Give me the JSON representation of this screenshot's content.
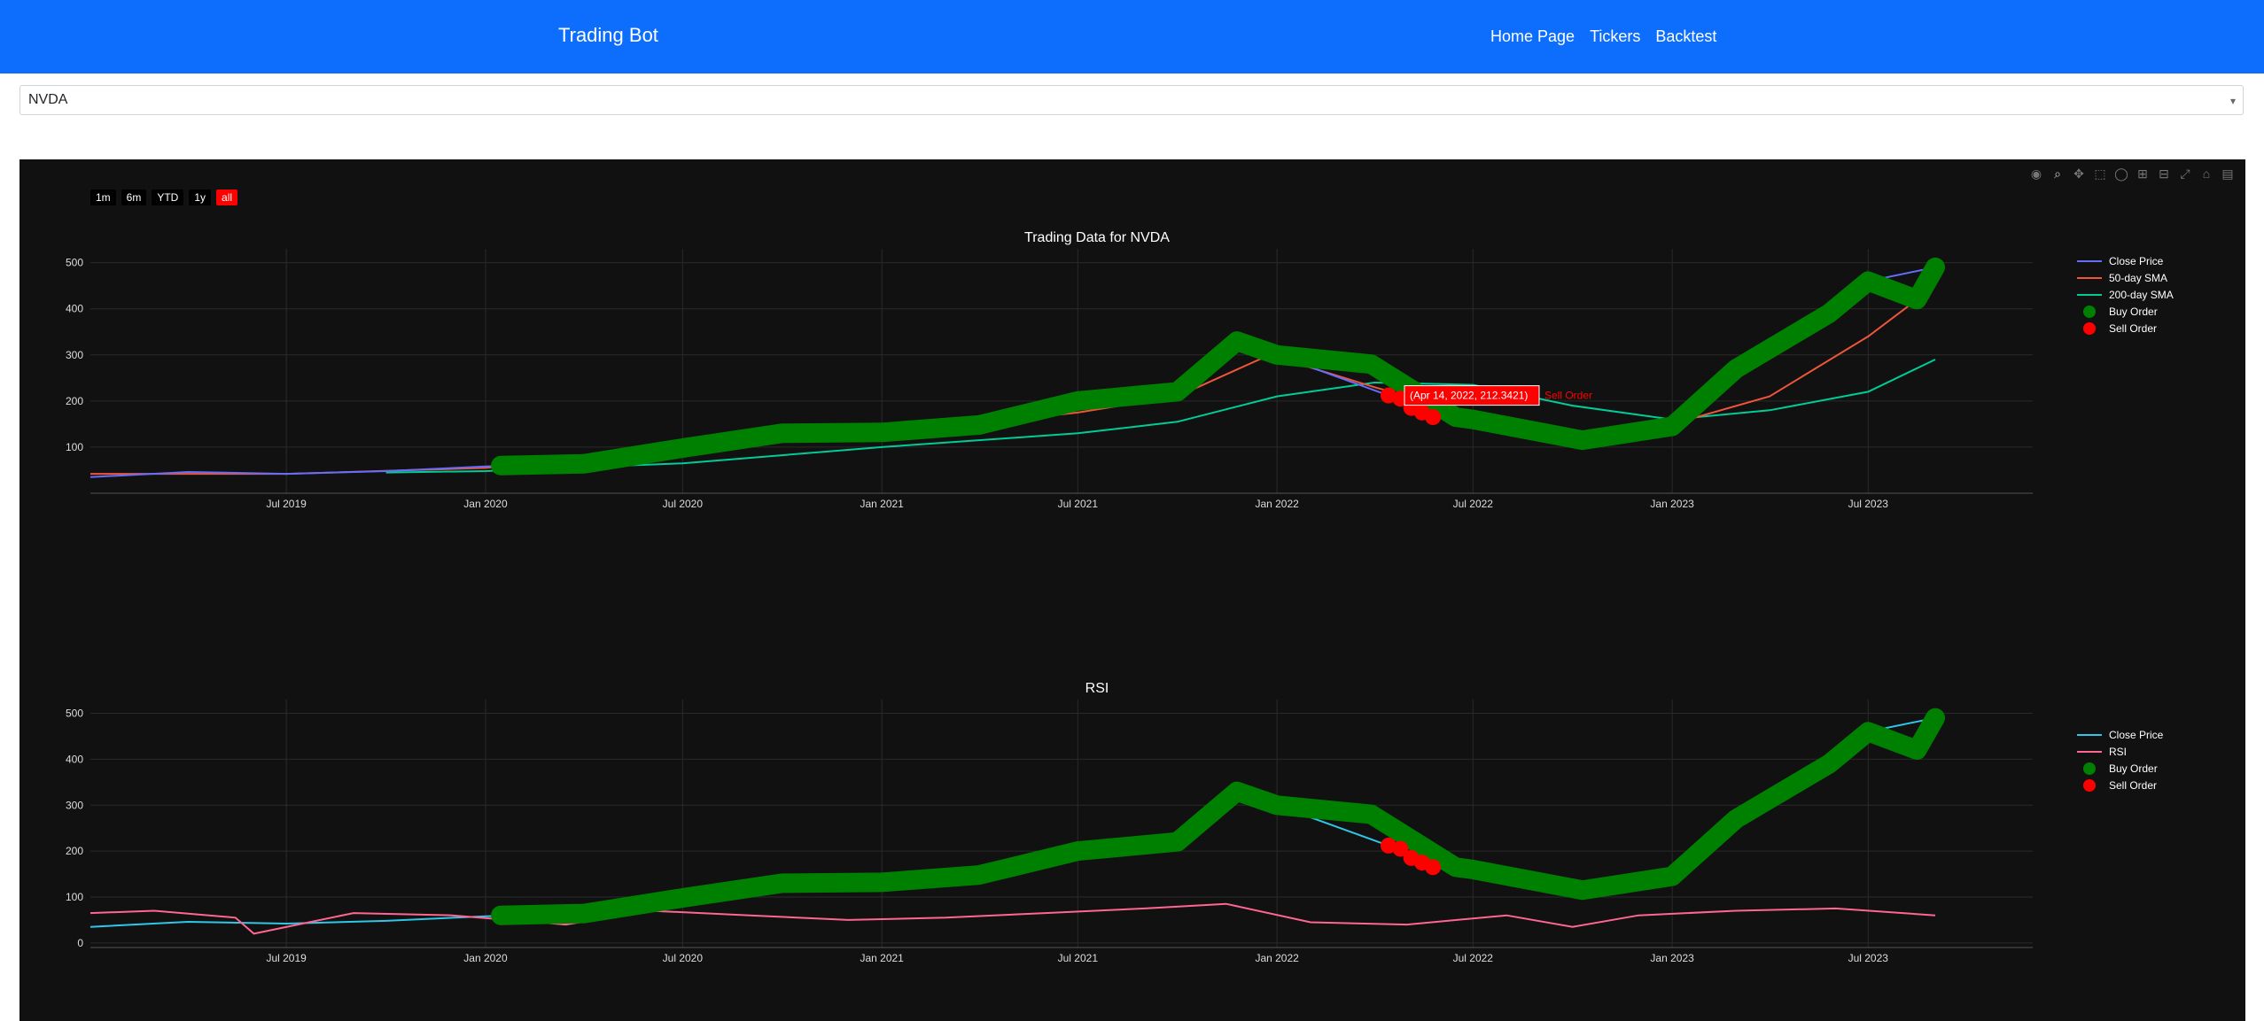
{
  "navbar": {
    "brand": "Trading Bot",
    "links": [
      "Home Page",
      "Tickers",
      "Backtest"
    ],
    "bg_color": "#0d6efd"
  },
  "ticker_select": {
    "value": "NVDA"
  },
  "range_selector": {
    "buttons": [
      "1m",
      "6m",
      "YTD",
      "1y",
      "all"
    ],
    "active": "all"
  },
  "modebar_icons": [
    "camera-icon",
    "zoom-icon",
    "pan-icon",
    "box-select-icon",
    "lasso-icon",
    "zoom-in-icon",
    "zoom-out-icon",
    "autoscale-icon",
    "reset-axes-icon",
    "plotly-logo-icon"
  ],
  "chart_data": [
    {
      "type": "line",
      "title": "Trading Data for NVDA",
      "x_tick_labels": [
        "Jul 2019",
        "Jan 2020",
        "Jul 2020",
        "Jan 2021",
        "Jul 2021",
        "Jan 2022",
        "Jul 2022",
        "Jan 2023",
        "Jul 2023"
      ],
      "y_tick_labels": [
        "100",
        "200",
        "300",
        "400",
        "500"
      ],
      "ylim": [
        0,
        530
      ],
      "legend": [
        "Close Price",
        "50-day SMA",
        "200-day SMA",
        "Buy Order",
        "Sell Order"
      ],
      "series_colors": {
        "close": "#636efa",
        "sma50": "#ef553b",
        "sma200": "#00cc96",
        "buy": "#008000",
        "sell": "#ff0000"
      },
      "series": [
        {
          "name": "Close Price",
          "x": [
            "2019-01-01",
            "2019-04-01",
            "2019-07-01",
            "2019-10-01",
            "2020-01-01",
            "2020-04-01",
            "2020-07-01",
            "2020-10-01",
            "2021-01-01",
            "2021-04-01",
            "2021-07-01",
            "2021-10-01",
            "2021-11-25",
            "2022-01-01",
            "2022-04-14",
            "2022-06-15",
            "2022-07-01",
            "2022-10-10",
            "2023-01-01",
            "2023-03-01",
            "2023-05-30",
            "2023-07-01",
            "2023-09-01"
          ],
          "y": [
            35,
            46,
            42,
            48,
            58,
            64,
            98,
            130,
            132,
            148,
            200,
            220,
            330,
            300,
            212,
            165,
            160,
            115,
            145,
            270,
            390,
            460,
            490
          ]
        },
        {
          "name": "50-day SMA",
          "x": [
            "2019-01-01",
            "2019-07-01",
            "2020-01-01",
            "2020-07-01",
            "2021-01-01",
            "2021-07-01",
            "2021-10-01",
            "2021-12-25",
            "2022-04-01",
            "2022-07-01",
            "2022-10-15",
            "2023-01-01",
            "2023-04-01",
            "2023-07-01",
            "2023-09-01"
          ],
          "y": [
            42,
            42,
            55,
            95,
            128,
            175,
            210,
            300,
            230,
            170,
            130,
            150,
            210,
            340,
            450
          ]
        },
        {
          "name": "200-day SMA",
          "x": [
            "2019-10-01",
            "2020-01-01",
            "2020-07-01",
            "2021-01-01",
            "2021-07-01",
            "2021-10-01",
            "2022-01-01",
            "2022-04-01",
            "2022-07-01",
            "2022-10-01",
            "2023-01-01",
            "2023-04-01",
            "2023-07-01",
            "2023-09-01"
          ],
          "y": [
            45,
            48,
            65,
            100,
            130,
            155,
            210,
            240,
            235,
            190,
            160,
            180,
            220,
            290
          ]
        },
        {
          "name": "Buy Order",
          "x": [
            "2020-01-15",
            "2020-04-01",
            "2020-07-01",
            "2020-10-01",
            "2021-01-01",
            "2021-04-01",
            "2021-07-01",
            "2021-10-01",
            "2021-11-25",
            "2022-01-01",
            "2022-03-29",
            "2022-06-15",
            "2022-07-01",
            "2022-10-10",
            "2023-01-01",
            "2023-03-01",
            "2023-05-26",
            "2023-07-01",
            "2023-08-15",
            "2023-09-01"
          ],
          "y": [
            60,
            64,
            98,
            130,
            132,
            148,
            200,
            220,
            330,
            300,
            280,
            165,
            160,
            115,
            145,
            270,
            390,
            460,
            420,
            490
          ]
        },
        {
          "name": "Sell Order",
          "x": [
            "2022-04-14",
            "2022-04-25",
            "2022-05-05",
            "2022-05-15",
            "2022-05-25"
          ],
          "y": [
            212,
            205,
            185,
            175,
            165
          ]
        }
      ],
      "hover_label": "(Apr 14, 2022, 212.3421)",
      "hover_name": "Sell Order"
    },
    {
      "type": "line",
      "title": "RSI",
      "x_tick_labels": [
        "Jul 2019",
        "Jan 2020",
        "Jul 2020",
        "Jan 2021",
        "Jul 2021",
        "Jan 2022",
        "Jul 2022",
        "Jan 2023",
        "Jul 2023"
      ],
      "y_tick_labels": [
        "0",
        "100",
        "200",
        "300",
        "400",
        "500"
      ],
      "ylim": [
        -10,
        530
      ],
      "legend": [
        "Close Price",
        "RSI",
        "Buy Order",
        "Sell Order"
      ],
      "series_colors": {
        "close": "#2ec7e8",
        "rsi": "#ff6692",
        "buy": "#008000",
        "sell": "#ff0000"
      },
      "series": [
        {
          "name": "Close Price",
          "x": [
            "2019-01-01",
            "2019-04-01",
            "2019-07-01",
            "2019-10-01",
            "2020-01-01",
            "2020-04-01",
            "2020-07-01",
            "2020-10-01",
            "2021-01-01",
            "2021-04-01",
            "2021-07-01",
            "2021-10-01",
            "2021-11-25",
            "2022-01-01",
            "2022-04-14",
            "2022-06-15",
            "2022-07-01",
            "2022-10-10",
            "2023-01-01",
            "2023-03-01",
            "2023-05-30",
            "2023-07-01",
            "2023-09-01"
          ],
          "y": [
            35,
            46,
            42,
            48,
            58,
            64,
            98,
            130,
            132,
            148,
            200,
            220,
            330,
            300,
            212,
            165,
            160,
            115,
            145,
            270,
            390,
            460,
            490
          ]
        },
        {
          "name": "RSI",
          "x": [
            "2019-01-01",
            "2019-03-01",
            "2019-05-15",
            "2019-06-01",
            "2019-09-01",
            "2019-12-01",
            "2020-03-15",
            "2020-06-01",
            "2020-09-01",
            "2020-12-01",
            "2021-03-01",
            "2021-06-01",
            "2021-09-01",
            "2021-11-15",
            "2022-02-01",
            "2022-05-01",
            "2022-08-01",
            "2022-10-01",
            "2022-12-01",
            "2023-03-01",
            "2023-06-01",
            "2023-09-01"
          ],
          "y": [
            65,
            70,
            55,
            20,
            65,
            60,
            40,
            70,
            60,
            50,
            55,
            65,
            75,
            85,
            45,
            40,
            60,
            35,
            60,
            70,
            75,
            60
          ]
        },
        {
          "name": "Buy Order",
          "x": [
            "2020-01-15",
            "2020-04-01",
            "2020-07-01",
            "2020-10-01",
            "2021-01-01",
            "2021-04-01",
            "2021-07-01",
            "2021-10-01",
            "2021-11-25",
            "2022-01-01",
            "2022-03-29",
            "2022-06-15",
            "2022-07-01",
            "2022-10-10",
            "2023-01-01",
            "2023-03-01",
            "2023-05-26",
            "2023-07-01",
            "2023-08-15",
            "2023-09-01"
          ],
          "y": [
            60,
            64,
            98,
            130,
            132,
            148,
            200,
            220,
            330,
            300,
            280,
            165,
            160,
            115,
            145,
            270,
            390,
            460,
            420,
            490
          ]
        },
        {
          "name": "Sell Order",
          "x": [
            "2022-04-14",
            "2022-04-25",
            "2022-05-05",
            "2022-05-15",
            "2022-05-25"
          ],
          "y": [
            212,
            205,
            185,
            175,
            165
          ]
        }
      ]
    }
  ]
}
